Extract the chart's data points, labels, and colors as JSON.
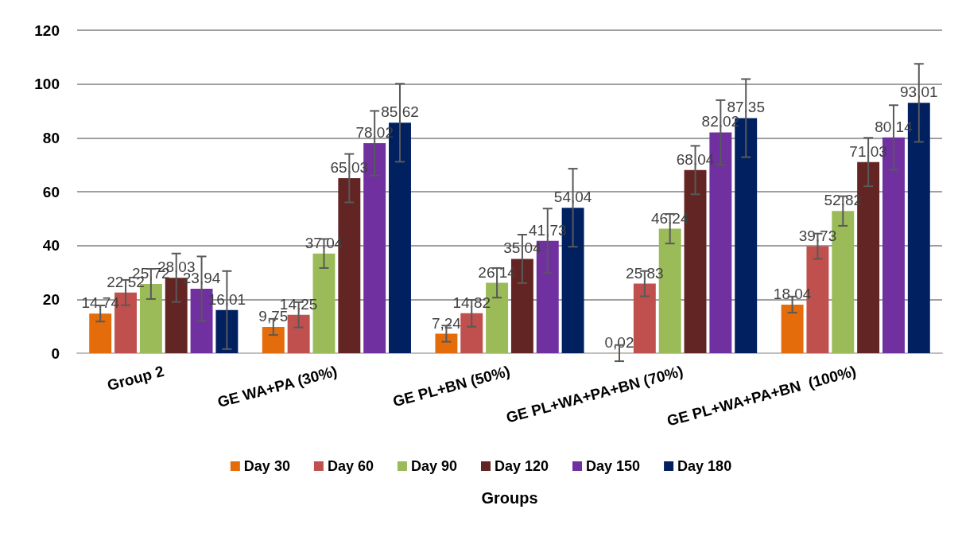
{
  "chart_data": {
    "type": "bar",
    "xlabel": "Groups",
    "categories": [
      "Group 2",
      "GE WA+PA (30%)",
      "GE PL+BN (50%)",
      "GE PL+WA+PA+BN (70%)",
      "GE PL+WA+PA+BN  (100%)"
    ],
    "series": [
      {
        "name": "Day 30",
        "color": "#e46c0a",
        "values": [
          14.74,
          9.75,
          7.24,
          0.02,
          18.04
        ],
        "value_labels": [
          "14,74",
          "9,75",
          "7,24",
          "0,02",
          "18,04"
        ],
        "errors": [
          3,
          3,
          3,
          3,
          3
        ]
      },
      {
        "name": "Day 60",
        "color": "#c0504d",
        "values": [
          22.52,
          14.25,
          14.82,
          25.83,
          39.73
        ],
        "value_labels": [
          "22,52",
          "14,25",
          "14,82",
          "25,83",
          "39,73"
        ],
        "errors": [
          4.7,
          4.7,
          5,
          4.7,
          4.7
        ]
      },
      {
        "name": "Day 90",
        "color": "#9bbb59",
        "values": [
          25.72,
          37.04,
          26.14,
          46.24,
          52.82
        ],
        "value_labels": [
          "25,72",
          "37,04",
          "26,14",
          "46,24",
          "52,82"
        ],
        "errors": [
          5.6,
          5.4,
          5.5,
          5.5,
          5.5
        ]
      },
      {
        "name": "Day 120",
        "color": "#632523",
        "values": [
          28.03,
          65.03,
          35.04,
          68.04,
          71.03
        ],
        "value_labels": [
          "28,03",
          "65,03",
          "35,04",
          "68,04",
          "71,03"
        ],
        "errors": [
          9,
          9,
          9,
          9,
          9
        ]
      },
      {
        "name": "Day 150",
        "color": "#7030a0",
        "values": [
          23.94,
          78.02,
          41.73,
          82.02,
          80.14
        ],
        "value_labels": [
          "23,94",
          "78,02",
          "41,73",
          "82,02",
          "80,14"
        ],
        "errors": [
          12,
          12,
          12,
          12,
          12
        ]
      },
      {
        "name": "Day 180",
        "color": "#002060",
        "values": [
          16.01,
          85.62,
          54.04,
          87.35,
          93.01
        ],
        "value_labels": [
          "16,01",
          "85,62",
          "54,04",
          "87,35",
          "93,01"
        ],
        "errors": [
          14.5,
          14.5,
          14.5,
          14.5,
          14.5
        ]
      }
    ],
    "ylim": [
      0,
      120
    ],
    "yticks": [
      0,
      20,
      40,
      60,
      80,
      100,
      120
    ],
    "grid": "y",
    "legend": "bottom"
  }
}
